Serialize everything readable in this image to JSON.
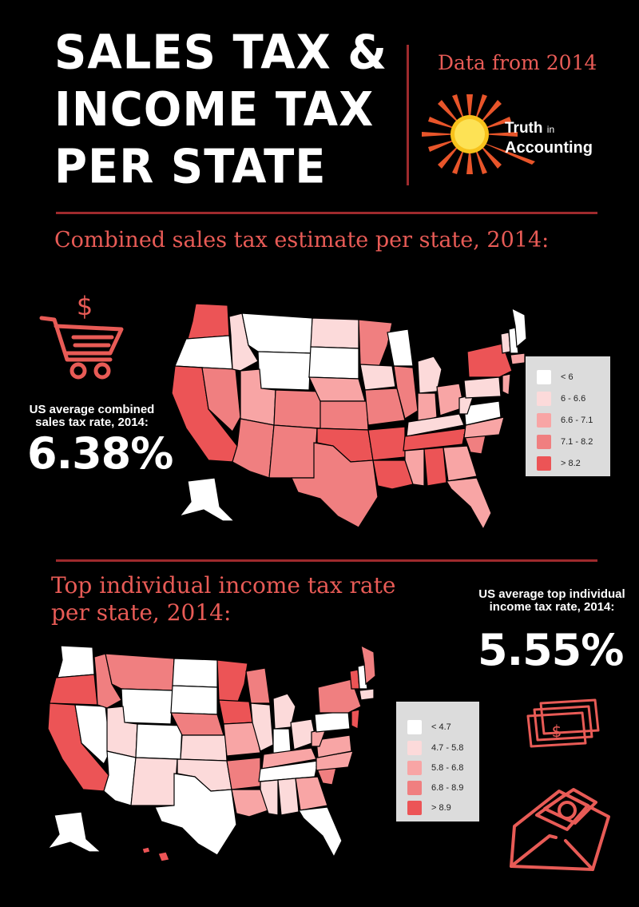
{
  "header": {
    "title": "SALES TAX &\nINCOME TAX\nPER STATE",
    "source_note": "Data from 2014",
    "logo_text_line1": "Truth",
    "logo_text_in": "in",
    "logo_text_line2": "Accounting"
  },
  "sales_section": {
    "title": "Combined sales tax estimate per state, 2014:",
    "average_label": "US average combined sales tax rate, 2014:",
    "average_value": "6.38%",
    "icons": [
      "dollar-icon",
      "shopping-cart-icon"
    ],
    "legend": [
      {
        "label": "< 6",
        "color": "#ffffff"
      },
      {
        "label": "6 - 6.6",
        "color": "#fcdada"
      },
      {
        "label": "6.6 - 7.1",
        "color": "#f8a5a5"
      },
      {
        "label": "7.1 - 8.2",
        "color": "#f07f80"
      },
      {
        "label": "> 8.2",
        "color": "#ec5456"
      }
    ]
  },
  "income_section": {
    "title": "Top individual income tax rate per state, 2014:",
    "average_label": "US average top individual income tax rate, 2014:",
    "average_value": "5.55%",
    "icons": [
      "cash-bills-icon",
      "money-envelope-icon"
    ],
    "legend": [
      {
        "label": "< 4.7",
        "color": "#ffffff"
      },
      {
        "label": "4.7 - 5.8",
        "color": "#fcdada"
      },
      {
        "label": "5.8 - 6.8",
        "color": "#f8a5a5"
      },
      {
        "label": "6.8 - 8.9",
        "color": "#f07f80"
      },
      {
        "label": "> 8.9",
        "color": "#ec5456"
      }
    ]
  },
  "colors": {
    "background": "#000000",
    "accent": "#e85b56",
    "rule": "#9e2a2d"
  }
}
